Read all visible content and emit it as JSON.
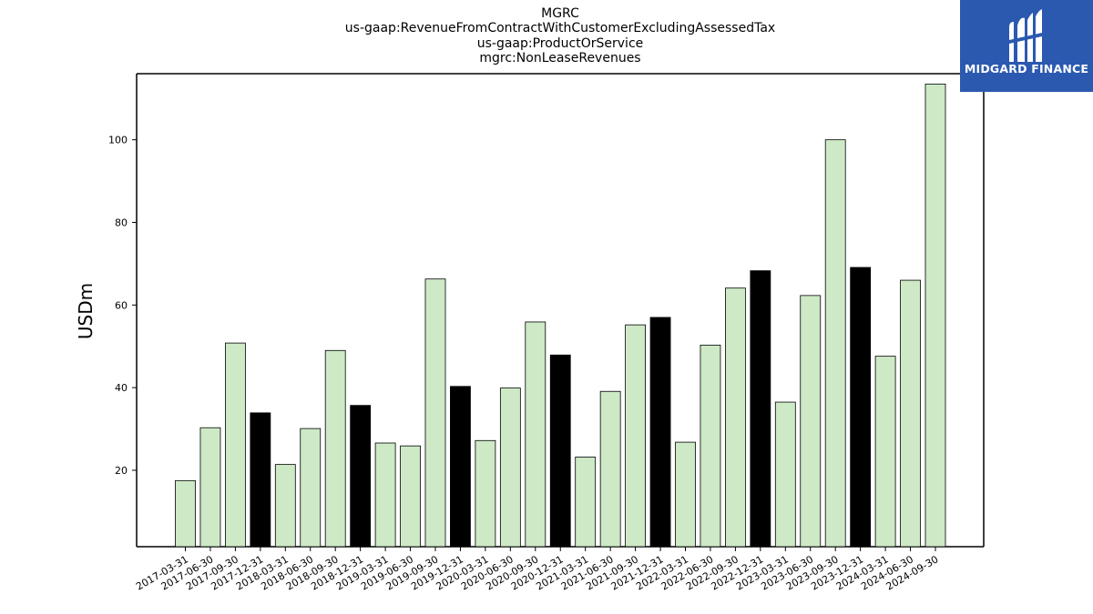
{
  "chart_data": {
    "type": "bar",
    "title_lines": [
      "MGRC",
      "us-gaap:RevenueFromContractWithCustomerExcludingAssessedTax",
      "us-gaap:ProductOrService",
      "mgrc:NonLeaseRevenues"
    ],
    "xlabel": "",
    "ylabel": "USDm",
    "ylim": [
      1.5,
      116
    ],
    "yticks": [
      20,
      40,
      60,
      80,
      100
    ],
    "grid": false,
    "categories": [
      "2017-03-31",
      "2017-06-30",
      "2017-09-30",
      "2017-12-31",
      "2018-03-31",
      "2018-06-30",
      "2018-09-30",
      "2018-12-31",
      "2019-03-31",
      "2019-06-30",
      "2019-09-30",
      "2019-12-31",
      "2020-03-31",
      "2020-06-30",
      "2020-09-30",
      "2020-12-31",
      "2021-03-31",
      "2021-06-30",
      "2021-09-30",
      "2021-12-31",
      "2022-03-31",
      "2022-06-30",
      "2022-09-30",
      "2022-12-31",
      "2023-03-31",
      "2023-06-30",
      "2023-09-30",
      "2023-12-31",
      "2024-03-31",
      "2024-06-30",
      "2024-09-30"
    ],
    "values": [
      17.5,
      30.3,
      50.8,
      33.9,
      21.4,
      30.1,
      49.0,
      35.7,
      26.6,
      25.9,
      66.3,
      40.3,
      27.2,
      39.9,
      55.9,
      47.9,
      23.2,
      39.1,
      55.2,
      57.0,
      26.8,
      50.3,
      64.1,
      68.3,
      36.5,
      62.3,
      100.0,
      69.1,
      47.6,
      66.0,
      113.5
    ],
    "year_end_flags": [
      false,
      false,
      false,
      true,
      false,
      false,
      false,
      true,
      false,
      false,
      false,
      true,
      false,
      false,
      false,
      true,
      false,
      false,
      false,
      true,
      false,
      false,
      false,
      true,
      false,
      false,
      false,
      true,
      false,
      false,
      false
    ],
    "colors": {
      "quarter_bar": "#cde9c6",
      "year_end_bar": "#000000",
      "bar_edge": "#000000",
      "axis": "#000000"
    }
  },
  "logo": {
    "text": "MIDGARD FINANCE",
    "background": "#2b59b0"
  }
}
